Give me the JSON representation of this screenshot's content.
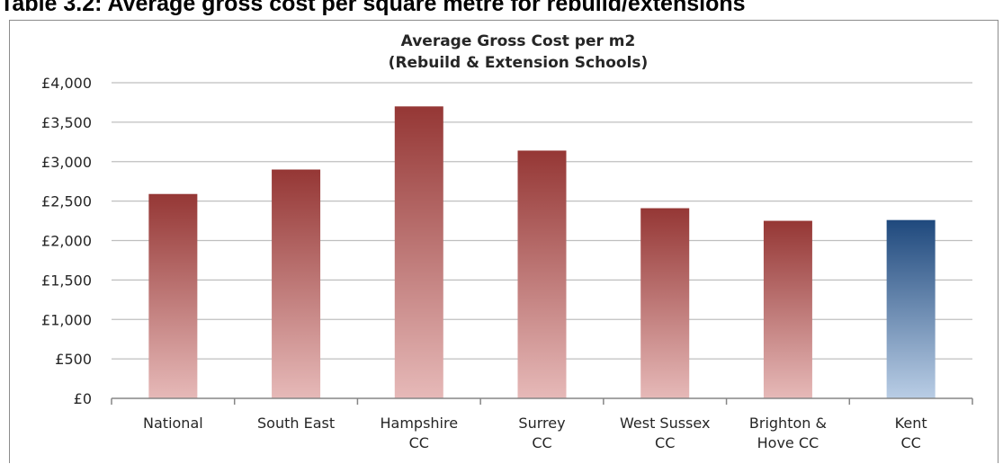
{
  "document": {
    "caption": "Table 3.2: Average gross cost per square metre for rebuild/extensions"
  },
  "chart_data": {
    "type": "bar",
    "title_lines": [
      "Average Gross Cost per m2",
      "(Rebuild & Extension Schools)"
    ],
    "categories": [
      [
        "National"
      ],
      [
        "South East"
      ],
      [
        "Hampshire",
        "CC"
      ],
      [
        "Surrey",
        "CC"
      ],
      [
        "West Sussex",
        "CC"
      ],
      [
        "Brighton &",
        "Hove CC"
      ],
      [
        "Kent",
        "CC"
      ]
    ],
    "values": [
      2590,
      2900,
      3700,
      3140,
      2410,
      2250,
      2260
    ],
    "ylim": [
      0,
      4000
    ],
    "yticks": [
      0,
      500,
      1000,
      1500,
      2000,
      2500,
      3000,
      3500,
      4000
    ],
    "ytick_labels": [
      "£0",
      "£500",
      "£1,000",
      "£1,500",
      "£2,000",
      "£2,500",
      "£3,000",
      "£3,500",
      "£4,000"
    ],
    "grid": true,
    "legend": "none",
    "highlight_index": 6,
    "colors": {
      "bar_top": "#953735",
      "bar_bottom": "#e6b9b8",
      "highlight_top": "#1f497d",
      "highlight_bottom": "#b9cde5",
      "grid": "#bfbfbf",
      "axis": "#868686"
    }
  }
}
